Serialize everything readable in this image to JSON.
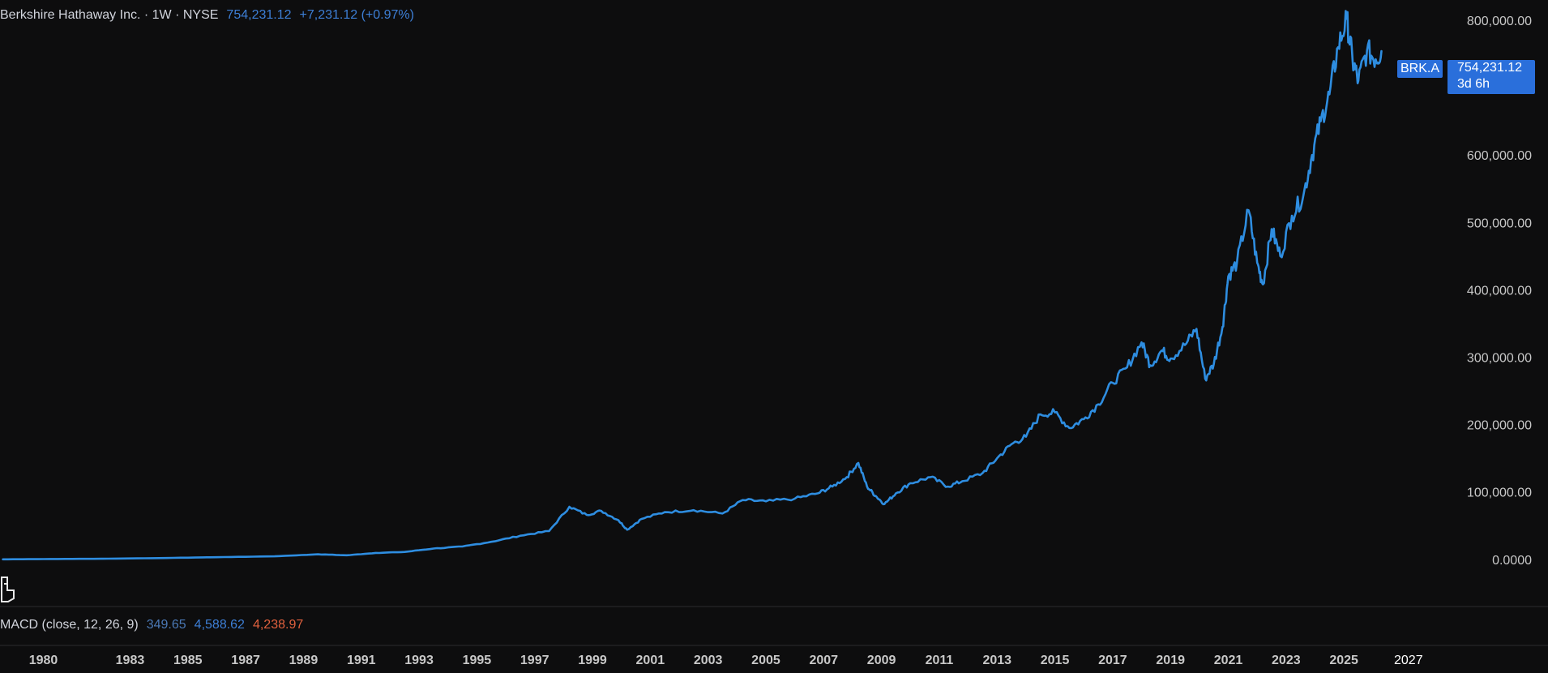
{
  "header": {
    "symbol_info": "Berkshire Hathaway Inc. · 1W · NYSE",
    "price": "754,231.12",
    "change": "+7,231.12 (+0.97%)"
  },
  "price_tag": {
    "symbol": "BRK.A",
    "price": "754,231.12",
    "countdown": "3d 6h"
  },
  "indicator": {
    "name": "MACD (close, 12, 26, 9)",
    "macd": "349.65",
    "signal": "4,588.62",
    "histogram": "4,238.97"
  },
  "colors": {
    "line": "#2e8de0",
    "background": "#0d0d0e",
    "accent": "#2a6fdb",
    "axis_text": "#c8c8c8",
    "negative": "#e0603e"
  },
  "icons": [
    "person-icon"
  ],
  "chart_data": {
    "type": "line",
    "y_tick_labels": [
      "800,000.00",
      "700,000.00",
      "600,000.00",
      "500,000.00",
      "400,000.00",
      "300,000.00",
      "200,000.00",
      "100,000.00",
      "0.0000"
    ],
    "y_tick_values": [
      800000,
      700000,
      600000,
      500000,
      400000,
      300000,
      200000,
      100000,
      0
    ],
    "x_tick_labels": [
      "1980",
      "1983",
      "1985",
      "1987",
      "1989",
      "1991",
      "1993",
      "1995",
      "1997",
      "1999",
      "2001",
      "2003",
      "2005",
      "2007",
      "2009",
      "2011",
      "2013",
      "2015",
      "2017",
      "2019",
      "2021",
      "2023",
      "2025",
      "2027"
    ],
    "x_tick_values": [
      1980,
      1983,
      1985,
      1987,
      1989,
      1991,
      1993,
      1995,
      1997,
      1999,
      2001,
      2003,
      2005,
      2007,
      2009,
      2011,
      2013,
      2015,
      2017,
      2019,
      2021,
      2023,
      2025,
      2027
    ],
    "xlim": [
      1978.5,
      2027.8
    ],
    "ylim": [
      -70000,
      830000
    ],
    "grid": false,
    "series": [
      {
        "x": [
          1978.6,
          1980,
          1982,
          1984,
          1986,
          1988,
          1989.5,
          1990.5,
          1991.5,
          1992.5,
          1993.5,
          1994.5,
          1995.5,
          1996.5,
          1997.5,
          1998.2,
          1998.8,
          1999.3,
          1999.9,
          2000.2,
          2000.7,
          2001.5,
          2002.5,
          2003.5,
          2004.2,
          2005.0,
          2006.0,
          2006.8,
          2007.3,
          2007.8,
          2008.2,
          2008.5,
          2008.8,
          2009.1,
          2009.5,
          2010.0,
          2010.7,
          2011.3,
          2011.8,
          2012.5,
          2013.0,
          2013.5,
          2014.0,
          2014.5,
          2015.0,
          2015.5,
          2016.0,
          2016.5,
          2017.0,
          2017.5,
          2018.0,
          2018.3,
          2018.7,
          2019.0,
          2019.5,
          2019.9,
          2020.2,
          2020.5,
          2020.8,
          2021.0,
          2021.3,
          2021.7,
          2022.0,
          2022.2,
          2022.5,
          2022.8,
          2023.2,
          2023.6,
          2023.9,
          2024.2,
          2024.5,
          2024.8,
          2025.1,
          2025.3,
          2025.5,
          2025.8,
          2026.1,
          2026.3
        ],
        "values": [
          0,
          400,
          900,
          1800,
          3200,
          4500,
          7500,
          6000,
          9500,
          11000,
          16000,
          19000,
          26000,
          35000,
          42000,
          78000,
          66000,
          72000,
          58000,
          44000,
          60000,
          70000,
          73000,
          68000,
          88000,
          86000,
          90000,
          98000,
          108000,
          122000,
          143000,
          108000,
          94000,
          82000,
          98000,
          113000,
          122000,
          108000,
          116000,
          128000,
          150000,
          171000,
          182000,
          215000,
          218000,
          195000,
          208000,
          230000,
          262000,
          285000,
          322000,
          288000,
          310000,
          298000,
          318000,
          342000,
          268000,
          290000,
          345000,
          420000,
          440000,
          518000,
          440000,
          408000,
          490000,
          450000,
          510000,
          540000,
          600000,
          650000,
          690000,
          760000,
          802000,
          740000,
          710000,
          755000,
          742000,
          754231
        ]
      }
    ]
  }
}
